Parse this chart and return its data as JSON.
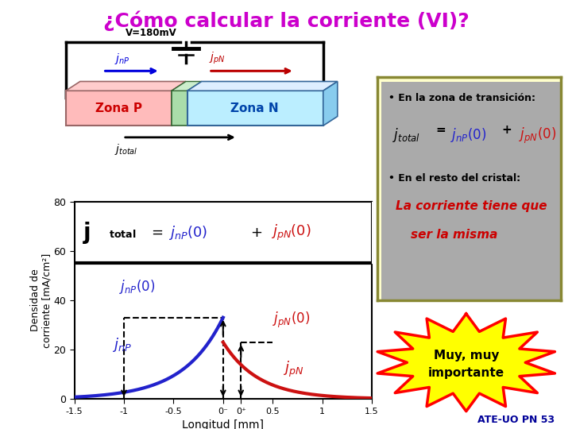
{
  "title": "¿Cómo calcular la corriente (VI)?",
  "title_color": "#CC00CC",
  "title_fontsize": 18,
  "background_color": "#FFFFFF",
  "xlabel": "Longitud [mm]",
  "ylabel": "Densidad de\ncorriente [mA/cm²]",
  "xlim": [
    -1.5,
    1.5
  ],
  "ylim": [
    0,
    80
  ],
  "zona_p_color": "#FFBBBB",
  "zona_p_edge": "#996666",
  "zona_n_color": "#BBEEFF",
  "zona_n_edge": "#336699",
  "junction_color": "#AADDAA",
  "junction_edge": "#336633",
  "jnP_color": "#0000DD",
  "jpN_color": "#BB0000",
  "curve_jnP_color": "#2222CC",
  "curve_jpN_color": "#CC1111",
  "box_color": "#FFFFCC",
  "box_border": "#888833",
  "star_fill": "#FFFF00",
  "star_border": "#FF0000",
  "footer_color": "#000099",
  "footer_text": "ATE-UO PN 53",
  "jnP_peak": 33,
  "jpN_peak": 23,
  "jnP_decay": 2.5,
  "jpN_decay": 2.8
}
